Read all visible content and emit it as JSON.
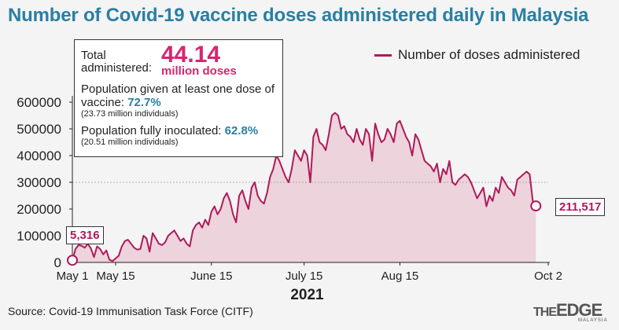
{
  "title": "Number of Covid-19 vaccine doses administered daily in Malaysia",
  "info": {
    "total_label": "Total administered:",
    "total_value": "44.14",
    "total_unit": "million doses",
    "one_dose_label": "Population given at least one dose of vaccine:",
    "one_dose_value": "72.7%",
    "one_dose_sub": "(23.73 million individuals)",
    "full_label": "Population fully inoculated:",
    "full_value": "62.8%",
    "full_sub": "(20.51 million individuals)"
  },
  "callouts": {
    "start": "5,316",
    "end": "211,517"
  },
  "source": "Source: Covid-19 Immunisation Task Force (CITF)",
  "logo": {
    "main": "THE",
    "main2": "EDGE",
    "sub": "MALAYSIA"
  },
  "colors": {
    "line": "#b0195a",
    "fill": "#ecd3dc",
    "title": "#2a7fa3",
    "highlight": "#d6266f"
  },
  "chart_data": {
    "type": "area",
    "title": "Number of Covid-19 vaccine doses administered daily in Malaysia",
    "xlabel": "2021",
    "ylabel": "",
    "ylim": [
      0,
      600000
    ],
    "yticks": [
      "600000",
      "500000",
      "400000",
      "300000",
      "200000",
      "100000",
      "0"
    ],
    "ytick_values": [
      600000,
      500000,
      400000,
      300000,
      200000,
      100000,
      0
    ],
    "xticks": [
      "May 1",
      "May 15",
      "June 15",
      "July 15",
      "Aug 15",
      "Oct 2"
    ],
    "xtick_days": [
      0,
      14,
      45,
      75,
      106,
      154
    ],
    "x_unit": "days since May 1",
    "series": [
      {
        "name": "Number of doses administered",
        "values": [
          5316,
          50000,
          65000,
          62000,
          55000,
          70000,
          52000,
          20000,
          60000,
          50000,
          30000,
          45000,
          10000,
          5000,
          15000,
          25000,
          60000,
          80000,
          85000,
          70000,
          55000,
          48000,
          50000,
          100000,
          90000,
          40000,
          110000,
          90000,
          70000,
          65000,
          75000,
          100000,
          110000,
          120000,
          100000,
          80000,
          90000,
          70000,
          60000,
          120000,
          140000,
          150000,
          130000,
          160000,
          140000,
          190000,
          210000,
          180000,
          200000,
          240000,
          260000,
          230000,
          180000,
          150000,
          250000,
          270000,
          230000,
          200000,
          280000,
          300000,
          250000,
          230000,
          220000,
          260000,
          320000,
          350000,
          400000,
          380000,
          350000,
          320000,
          300000,
          350000,
          420000,
          400000,
          380000,
          420000,
          400000,
          300000,
          470000,
          500000,
          450000,
          440000,
          420000,
          480000,
          550000,
          560000,
          550000,
          500000,
          510000,
          480000,
          470000,
          450000,
          500000,
          460000,
          440000,
          500000,
          480000,
          380000,
          520000,
          480000,
          450000,
          460000,
          500000,
          480000,
          450000,
          520000,
          530000,
          500000,
          470000,
          450000,
          400000,
          480000,
          460000,
          420000,
          380000,
          370000,
          360000,
          340000,
          370000,
          300000,
          350000,
          330000,
          380000,
          300000,
          290000,
          310000,
          320000,
          330000,
          320000,
          300000,
          270000,
          240000,
          260000,
          280000,
          210000,
          250000,
          230000,
          280000,
          260000,
          320000,
          300000,
          280000,
          270000,
          250000,
          310000,
          320000,
          330000,
          340000,
          330000,
          230000,
          211517
        ],
        "color": "#b0195a"
      }
    ],
    "gridline_value": 300000,
    "legend": "top-right",
    "annotations": [
      "5,316",
      "211,517"
    ]
  }
}
